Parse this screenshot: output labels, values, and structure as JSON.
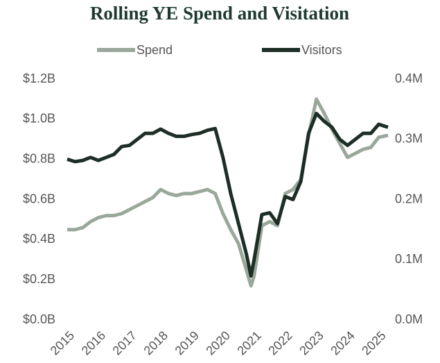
{
  "chart_data": {
    "type": "line",
    "title": "Rolling YE Spend and Visitation",
    "x": [
      2015,
      2015.25,
      2015.5,
      2015.75,
      2016,
      2016.25,
      2016.5,
      2016.75,
      2017,
      2017.25,
      2017.5,
      2017.75,
      2018,
      2018.25,
      2018.5,
      2018.75,
      2019,
      2019.25,
      2019.5,
      2019.75,
      2020,
      2020.25,
      2020.5,
      2020.75,
      2020.9,
      2021,
      2021.25,
      2021.5,
      2021.75,
      2022,
      2022.25,
      2022.5,
      2022.75,
      2023,
      2023.25,
      2023.5,
      2023.75,
      2024,
      2024.25,
      2024.5,
      2024.75,
      2025,
      2025.3
    ],
    "series": [
      {
        "name": "Spend",
        "color": "#9aa89c",
        "values": [
          0.45,
          0.45,
          0.46,
          0.49,
          0.51,
          0.52,
          0.52,
          0.53,
          0.55,
          0.57,
          0.59,
          0.61,
          0.65,
          0.63,
          0.62,
          0.63,
          0.63,
          0.64,
          0.65,
          0.63,
          0.53,
          0.45,
          0.38,
          0.25,
          0.17,
          0.22,
          0.47,
          0.49,
          0.47,
          0.63,
          0.65,
          0.7,
          0.92,
          1.1,
          1.03,
          0.95,
          0.88,
          0.81,
          0.83,
          0.85,
          0.86,
          0.91,
          0.92
        ]
      },
      {
        "name": "Visitors",
        "color": "#1c2e26",
        "axis": "y2",
        "values": [
          0.267,
          0.263,
          0.265,
          0.27,
          0.265,
          0.27,
          0.275,
          0.288,
          0.29,
          0.3,
          0.31,
          0.31,
          0.317,
          0.31,
          0.305,
          0.305,
          0.308,
          0.31,
          0.315,
          0.318,
          0.27,
          0.21,
          0.16,
          0.11,
          0.073,
          0.1,
          0.175,
          0.178,
          0.16,
          0.205,
          0.2,
          0.23,
          0.31,
          0.343,
          0.33,
          0.32,
          0.3,
          0.29,
          0.3,
          0.31,
          0.31,
          0.325,
          0.32
        ]
      }
    ],
    "xlim": [
      2015,
      2025.3
    ],
    "xticks": [
      2015,
      2016,
      2017,
      2018,
      2019,
      2020,
      2021,
      2022,
      2023,
      2024,
      2025
    ],
    "ylim": [
      0,
      1.2
    ],
    "yticks": [
      {
        "value": 0,
        "label": "$0.0B"
      },
      {
        "value": 0.2,
        "label": "$0.2B"
      },
      {
        "value": 0.4,
        "label": "$0.4B"
      },
      {
        "value": 0.6,
        "label": "$0.6B"
      },
      {
        "value": 0.8,
        "label": "$0.8B"
      },
      {
        "value": 1.0,
        "label": "$1.0B"
      },
      {
        "value": 1.2,
        "label": "$1.2B"
      }
    ],
    "y2lim": [
      0,
      0.4
    ],
    "y2ticks": [
      {
        "value": 0,
        "label": "0.0M"
      },
      {
        "value": 0.1,
        "label": "0.1M"
      },
      {
        "value": 0.2,
        "label": "0.2M"
      },
      {
        "value": 0.3,
        "label": "0.3M"
      },
      {
        "value": 0.4,
        "label": "0.4M"
      }
    ],
    "legend": "top"
  }
}
